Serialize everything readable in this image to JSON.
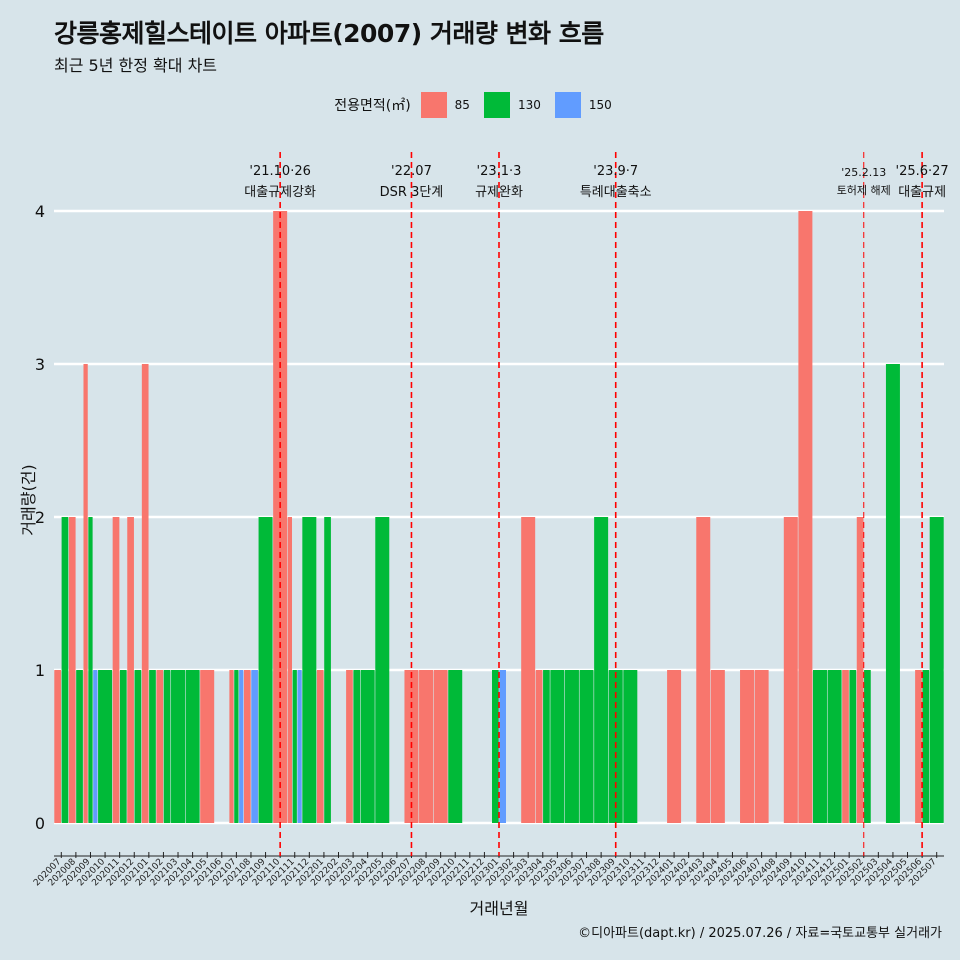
{
  "chart_data": {
    "type": "bar",
    "title": "강릉홍제힐스테이트 아파트(2007) 거래량 변화 흐름",
    "subtitle": "최근 5년 한정 확대 차트",
    "xlabel": "거래년월",
    "ylabel": "거래량(건)",
    "ylim": [
      0,
      4
    ],
    "y_ticks": [
      0,
      1,
      2,
      3,
      4
    ],
    "grid": true,
    "legend_position": "top",
    "legend_title": "전용면적(㎡)",
    "legend": [
      {
        "name": "85",
        "color": "#f8766d"
      },
      {
        "name": "130",
        "color": "#00ba38"
      },
      {
        "name": "150",
        "color": "#619cff"
      }
    ],
    "caption": "©디아파트(dapt.kr) / 2025.07.26 / 자료=국토교통부 실거래가",
    "categories": [
      "202007",
      "202008",
      "202009",
      "202010",
      "202011",
      "202012",
      "202101",
      "202102",
      "202103",
      "202104",
      "202105",
      "202106",
      "202107",
      "202108",
      "202109",
      "202110",
      "202111",
      "202112",
      "202201",
      "202202",
      "202203",
      "202204",
      "202205",
      "202206",
      "202207",
      "202208",
      "202209",
      "202210",
      "202211",
      "202212",
      "202301",
      "202302",
      "202303",
      "202304",
      "202305",
      "202306",
      "202307",
      "202308",
      "202309",
      "202310",
      "202311",
      "202312",
      "202401",
      "202402",
      "202403",
      "202404",
      "202405",
      "202406",
      "202407",
      "202408",
      "202409",
      "202410",
      "202411",
      "202412",
      "202501",
      "202502",
      "202503",
      "202504",
      "202505",
      "202506",
      "202507"
    ],
    "series": [
      {
        "name": "85",
        "values": [
          1,
          2,
          3,
          0,
          2,
          2,
          3,
          1,
          0,
          0,
          1,
          0,
          1,
          1,
          0,
          4,
          2,
          0,
          1,
          0,
          1,
          0,
          0,
          0,
          1,
          1,
          1,
          0,
          0,
          0,
          0,
          0,
          2,
          1,
          0,
          0,
          0,
          0,
          0,
          0,
          0,
          0,
          1,
          0,
          2,
          1,
          0,
          1,
          1,
          0,
          2,
          4,
          0,
          0,
          1,
          2,
          0,
          0,
          0,
          1,
          0
        ]
      },
      {
        "name": "130",
        "values": [
          2,
          1,
          2,
          1,
          1,
          1,
          1,
          1,
          1,
          1,
          0,
          0,
          1,
          0,
          2,
          0,
          1,
          2,
          2,
          0,
          1,
          1,
          2,
          0,
          0,
          0,
          0,
          1,
          0,
          0,
          1,
          0,
          0,
          1,
          1,
          1,
          1,
          2,
          1,
          1,
          0,
          0,
          0,
          0,
          0,
          0,
          0,
          0,
          0,
          0,
          0,
          0,
          1,
          1,
          1,
          1,
          0,
          3,
          0,
          1,
          2
        ]
      },
      {
        "name": "150",
        "values": [
          0,
          0,
          1,
          0,
          0,
          0,
          0,
          0,
          0,
          0,
          0,
          0,
          1,
          1,
          0,
          0,
          1,
          0,
          0,
          0,
          0,
          0,
          0,
          0,
          0,
          0,
          0,
          0,
          0,
          0,
          1,
          0,
          0,
          0,
          0,
          0,
          0,
          0,
          0,
          0,
          0,
          0,
          0,
          0,
          0,
          0,
          0,
          0,
          0,
          0,
          0,
          0,
          0,
          0,
          0,
          0,
          0,
          0,
          0,
          0,
          0
        ]
      }
    ],
    "annotations": [
      {
        "x": "202110",
        "date": "'21.10·26",
        "label": "대출규제강화"
      },
      {
        "x": "202207",
        "date": "'22.07",
        "label": "DSR 3단계"
      },
      {
        "x": "202301",
        "date": "'23.1·3",
        "label": "규제완화"
      },
      {
        "x": "202309",
        "date": "'23.9·7",
        "label": "특례대출축소"
      },
      {
        "x": "202502",
        "date": "'25.2.13",
        "label": "토허제 해제"
      },
      {
        "x": "202506",
        "date": "'25.6·27",
        "label": "대출규제"
      }
    ],
    "annotation_line_color": "#ff0000"
  }
}
